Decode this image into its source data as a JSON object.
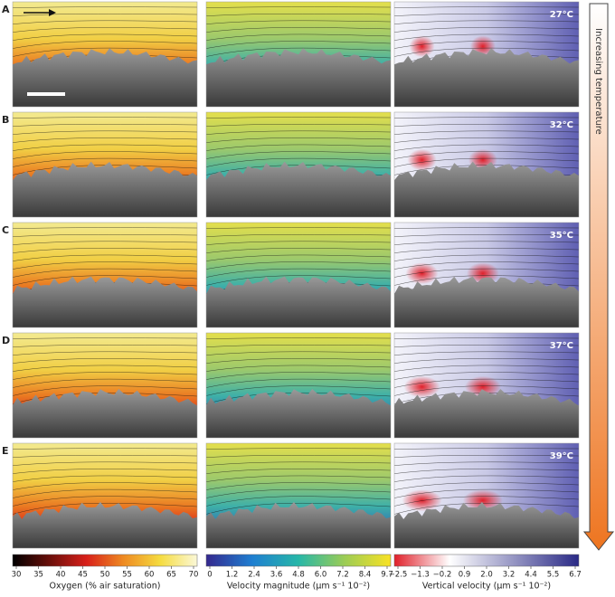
{
  "rows": [
    {
      "label": "A",
      "temperature": "27°C"
    },
    {
      "label": "B",
      "temperature": "32°C"
    },
    {
      "label": "C",
      "temperature": "35°C"
    },
    {
      "label": "D",
      "temperature": "37°C"
    },
    {
      "label": "E",
      "temperature": "39°C"
    }
  ],
  "arrow_label": "Increasing temperature",
  "colorbars": [
    {
      "label": "Oxygen (% air saturation)",
      "ticks": [
        "30",
        "35",
        "40",
        "45",
        "50",
        "55",
        "60",
        "65",
        "70"
      ]
    },
    {
      "label": "Velocity magnitude (μm s⁻¹ 10⁻²)",
      "ticks": [
        "0",
        "1.2",
        "2.4",
        "3.6",
        "4.8",
        "6.0",
        "7.2",
        "8.4",
        "9.7"
      ]
    },
    {
      "label": "Vertical velocity (μm s⁻¹ 10⁻²)",
      "ticks": [
        "−2.5",
        "−1.3",
        "−0.2",
        "0.9",
        "2.0",
        "3.2",
        "4.4",
        "5.5",
        "6.7"
      ]
    }
  ]
}
